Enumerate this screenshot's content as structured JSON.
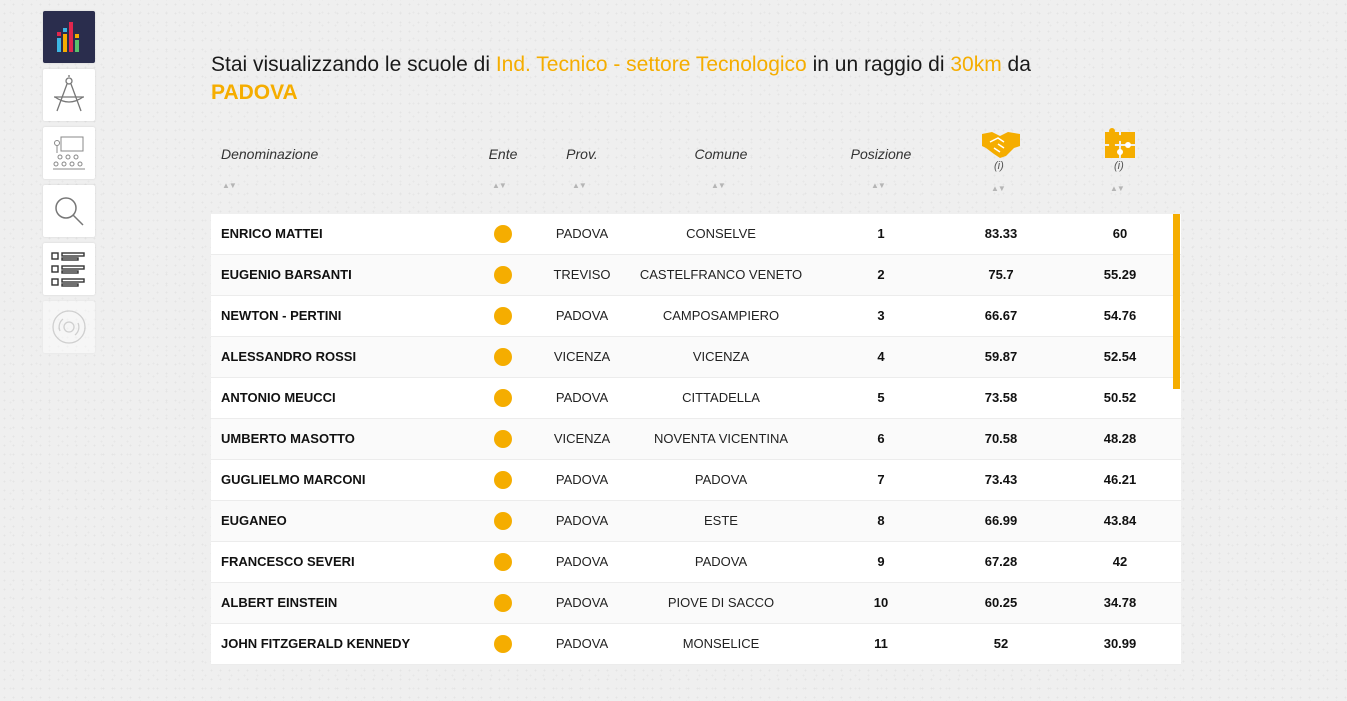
{
  "sidebar": {
    "items": [
      {
        "icon": "bar-chart-icon",
        "active": true
      },
      {
        "icon": "compass-icon"
      },
      {
        "icon": "classroom-icon"
      },
      {
        "icon": "search-icon"
      },
      {
        "icon": "checklist-icon"
      },
      {
        "icon": "disc-icon",
        "disabled": true
      }
    ]
  },
  "heading": {
    "prefix": "Stai visualizzando le scuole di ",
    "school_type": "Ind. Tecnico - settore Tecnologico",
    "middle": " in un raggio di ",
    "radius": "30km",
    "suffix": " da",
    "city": "PADOVA"
  },
  "table": {
    "columns": {
      "name": "Denominazione",
      "ente": "Ente",
      "prov": "Prov.",
      "comune": "Comune",
      "posizione": "Posizione",
      "col6_icon": "handshake-icon",
      "col7_icon": "puzzle-icon",
      "info": "(i)"
    },
    "rows": [
      {
        "name": "ENRICO MATTEI",
        "prov": "PADOVA",
        "comune": "CONSELVE",
        "pos": "1",
        "v1": "83.33",
        "v2": "60"
      },
      {
        "name": "EUGENIO BARSANTI",
        "prov": "TREVISO",
        "comune": "CASTELFRANCO VENETO",
        "pos": "2",
        "v1": "75.7",
        "v2": "55.29"
      },
      {
        "name": "NEWTON - PERTINI",
        "prov": "PADOVA",
        "comune": "CAMPOSAMPIERO",
        "pos": "3",
        "v1": "66.67",
        "v2": "54.76"
      },
      {
        "name": "ALESSANDRO ROSSI",
        "prov": "VICENZA",
        "comune": "VICENZA",
        "pos": "4",
        "v1": "59.87",
        "v2": "52.54"
      },
      {
        "name": "ANTONIO MEUCCI",
        "prov": "PADOVA",
        "comune": "CITTADELLA",
        "pos": "5",
        "v1": "73.58",
        "v2": "50.52"
      },
      {
        "name": "UMBERTO MASOTTO",
        "prov": "VICENZA",
        "comune": "NOVENTA VICENTINA",
        "pos": "6",
        "v1": "70.58",
        "v2": "48.28"
      },
      {
        "name": "GUGLIELMO MARCONI",
        "prov": "PADOVA",
        "comune": "PADOVA",
        "pos": "7",
        "v1": "73.43",
        "v2": "46.21"
      },
      {
        "name": "EUGANEO",
        "prov": "PADOVA",
        "comune": "ESTE",
        "pos": "8",
        "v1": "66.99",
        "v2": "43.84"
      },
      {
        "name": "FRANCESCO SEVERI",
        "prov": "PADOVA",
        "comune": "PADOVA",
        "pos": "9",
        "v1": "67.28",
        "v2": "42"
      },
      {
        "name": "ALBERT EINSTEIN",
        "prov": "PADOVA",
        "comune": "PIOVE DI SACCO",
        "pos": "10",
        "v1": "60.25",
        "v2": "34.78"
      },
      {
        "name": "JOHN FITZGERALD KENNEDY",
        "prov": "PADOVA",
        "comune": "MONSELICE",
        "pos": "11",
        "v1": "52",
        "v2": "30.99"
      }
    ]
  },
  "colors": {
    "accent": "#f5ad00",
    "sidebar_active": "#2a2d4d"
  }
}
